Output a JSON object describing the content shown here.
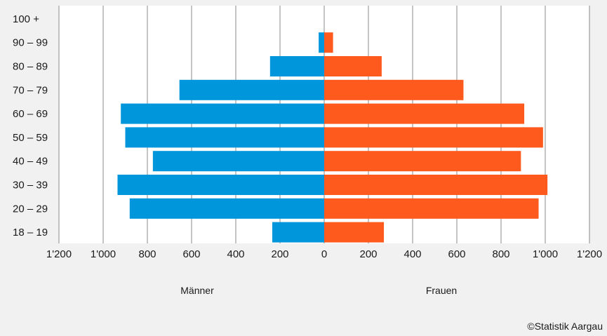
{
  "chart_data": {
    "type": "bar",
    "orientation": "horizontal",
    "layout": "population-pyramid",
    "categories": [
      "18 – 19",
      "20 – 29",
      "30 – 39",
      "40 – 49",
      "50 – 59",
      "60 – 69",
      "70 – 79",
      "80 – 89",
      "90 – 99",
      "100 +"
    ],
    "series": [
      {
        "name": "Männer",
        "side": "left",
        "color": "#0096dc",
        "values": [
          235,
          880,
          935,
          775,
          900,
          920,
          655,
          245,
          25,
          0
        ]
      },
      {
        "name": "Frauen",
        "side": "right",
        "color": "#ff5a1e",
        "values": [
          270,
          970,
          1010,
          890,
          990,
          905,
          630,
          260,
          40,
          0
        ]
      }
    ],
    "xlim": [
      -1200,
      1200
    ],
    "xticks": [
      -1200,
      -1000,
      -800,
      -600,
      -400,
      -200,
      0,
      200,
      400,
      600,
      800,
      1000,
      1200
    ],
    "xtick_labels": [
      "1'200",
      "1'000",
      "800",
      "600",
      "400",
      "200",
      "0",
      "200",
      "400",
      "600",
      "800",
      "1'000",
      "1'200"
    ],
    "grid": "vertical",
    "legend": "bottom"
  },
  "footer": {
    "credit": "©Statistik Aargau"
  }
}
